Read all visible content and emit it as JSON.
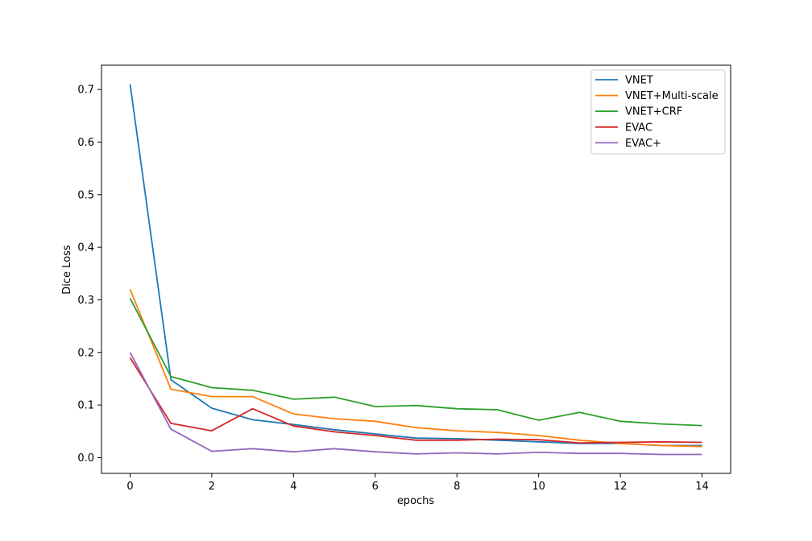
{
  "chart_data": {
    "type": "line",
    "xlabel": "epochs",
    "ylabel": "Dice Loss",
    "x": [
      0,
      1,
      2,
      3,
      4,
      5,
      6,
      7,
      8,
      9,
      10,
      11,
      12,
      13,
      14
    ],
    "xlim": [
      -0.7,
      14.7
    ],
    "ylim": [
      -0.03,
      0.7462
    ],
    "xticks": [
      0,
      2,
      4,
      6,
      8,
      10,
      12,
      14
    ],
    "yticks": [
      0.0,
      0.1,
      0.2,
      0.3,
      0.4,
      0.5,
      0.6,
      0.7
    ],
    "xtick_labels": [
      "0",
      "2",
      "4",
      "6",
      "8",
      "10",
      "12",
      "14"
    ],
    "ytick_labels": [
      "0.0",
      "0.1",
      "0.2",
      "0.3",
      "0.4",
      "0.5",
      "0.6",
      "0.7"
    ],
    "legend_position": "top-right",
    "grid": false,
    "series": [
      {
        "name": "VNET",
        "color": "#1f77b4",
        "values": [
          0.71,
          0.148,
          0.094,
          0.072,
          0.063,
          0.053,
          0.045,
          0.037,
          0.036,
          0.033,
          0.03,
          0.027,
          0.027,
          0.023,
          0.023
        ]
      },
      {
        "name": "VNET+Multi-scale",
        "color": "#ff7f0e",
        "values": [
          0.32,
          0.13,
          0.116,
          0.116,
          0.083,
          0.074,
          0.069,
          0.057,
          0.051,
          0.048,
          0.042,
          0.033,
          0.027,
          0.023,
          0.021
        ]
      },
      {
        "name": "VNET+CRF",
        "color": "#2ca02c",
        "values": [
          0.303,
          0.154,
          0.133,
          0.128,
          0.111,
          0.115,
          0.097,
          0.099,
          0.093,
          0.091,
          0.071,
          0.086,
          0.069,
          0.064,
          0.061
        ]
      },
      {
        "name": "EVAC",
        "color": "#d62728",
        "values": [
          0.19,
          0.065,
          0.051,
          0.093,
          0.06,
          0.049,
          0.042,
          0.033,
          0.033,
          0.035,
          0.034,
          0.028,
          0.029,
          0.03,
          0.029
        ]
      },
      {
        "name": "EVAC+",
        "color": "#9467bd",
        "values": [
          0.2,
          0.054,
          0.012,
          0.017,
          0.011,
          0.017,
          0.011,
          0.007,
          0.009,
          0.007,
          0.01,
          0.008,
          0.008,
          0.006,
          0.006
        ]
      }
    ]
  }
}
